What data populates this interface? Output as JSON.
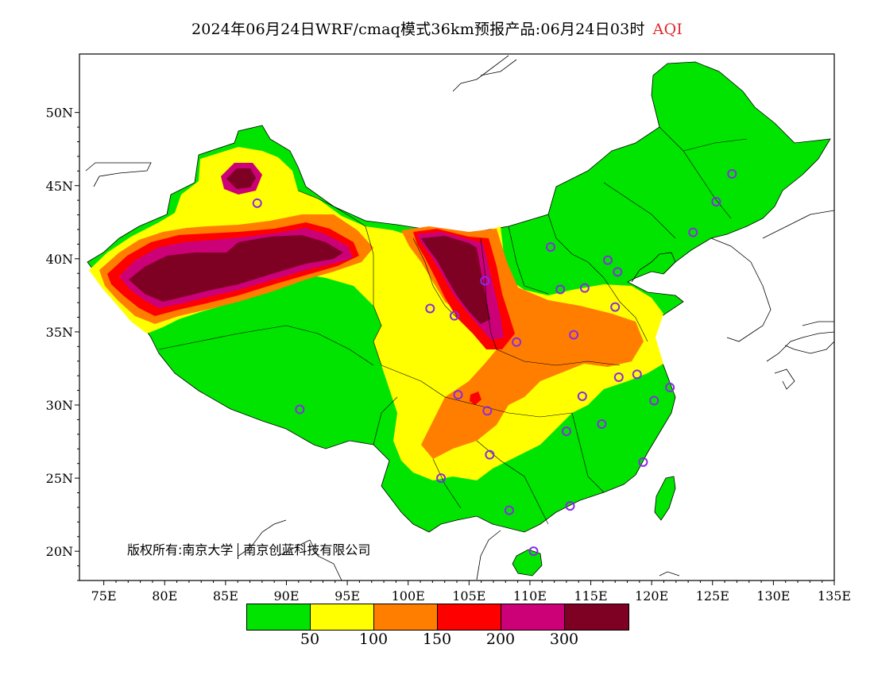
{
  "title": {
    "main": "2024年06月24日WRF/cmaq模式36km预报产品:06月24日03时",
    "variable": "AQI"
  },
  "copyright": {
    "part1": "版权所有:南京大学",
    "part2": "南京创蓝科技有限公司"
  },
  "axes": {
    "lon_labels": [
      "75E",
      "80E",
      "85E",
      "90E",
      "95E",
      "100E",
      "105E",
      "110E",
      "115E",
      "120E",
      "125E",
      "130E",
      "135E"
    ],
    "lat_labels": [
      "50N",
      "45N",
      "40N",
      "35N",
      "30N",
      "25N",
      "20N"
    ],
    "lon_range": [
      73,
      135
    ],
    "lat_range": [
      18,
      54
    ]
  },
  "legend": {
    "colors": [
      "#00e400",
      "#ffff00",
      "#ff7e00",
      "#ff0000",
      "#cc0077",
      "#7e0023"
    ],
    "labels": [
      "50",
      "100",
      "150",
      "200",
      "300"
    ]
  },
  "stations": {
    "color": "#8a2be2",
    "points": [
      [
        87.6,
        43.8
      ],
      [
        126.6,
        45.8
      ],
      [
        125.3,
        43.9
      ],
      [
        123.4,
        41.8
      ],
      [
        111.7,
        40.8
      ],
      [
        116.4,
        39.9
      ],
      [
        117.2,
        39.1
      ],
      [
        114.5,
        38.0
      ],
      [
        112.5,
        37.9
      ],
      [
        117.0,
        36.7
      ],
      [
        106.3,
        38.5
      ],
      [
        103.8,
        36.1
      ],
      [
        101.8,
        36.6
      ],
      [
        108.9,
        34.3
      ],
      [
        113.6,
        34.8
      ],
      [
        117.3,
        31.9
      ],
      [
        118.8,
        32.1
      ],
      [
        121.5,
        31.2
      ],
      [
        120.2,
        30.3
      ],
      [
        114.3,
        30.6
      ],
      [
        115.9,
        28.7
      ],
      [
        113.0,
        28.2
      ],
      [
        119.3,
        26.1
      ],
      [
        106.5,
        29.6
      ],
      [
        104.1,
        30.7
      ],
      [
        106.7,
        26.6
      ],
      [
        102.7,
        25.0
      ],
      [
        108.3,
        22.8
      ],
      [
        113.3,
        23.1
      ],
      [
        110.3,
        20.0
      ],
      [
        91.1,
        29.7
      ]
    ]
  }
}
